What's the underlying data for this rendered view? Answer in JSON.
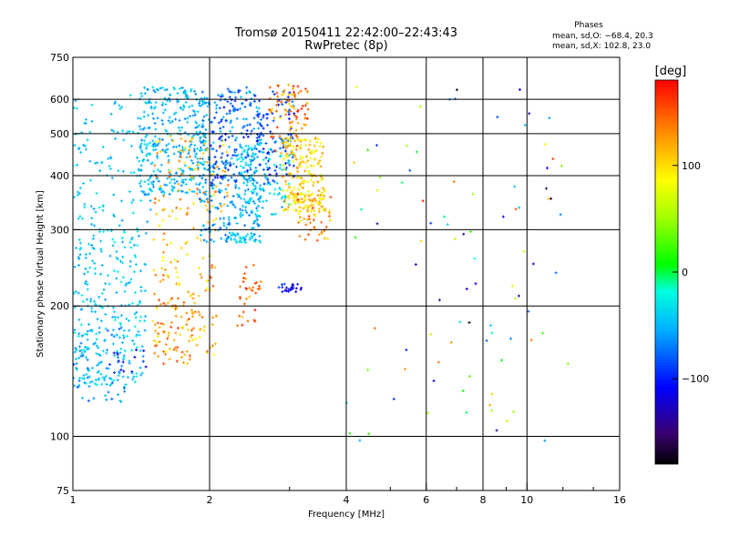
{
  "chart_data": {
    "type": "scatter",
    "title": "Tromsø 20150411 22:42:00–22:43:43",
    "subtitle": "RwPretec (8p)",
    "xlabel": "Frequency [MHz]",
    "ylabel": "Stationary phase Virtual Height [km]",
    "x_scale": "log",
    "y_scale": "log",
    "xlim": [
      1,
      16
    ],
    "ylim": [
      75,
      750
    ],
    "x_ticks": [
      1,
      2,
      4,
      6,
      8,
      10,
      16
    ],
    "x_tick_labels": [
      "1",
      "2",
      "4",
      "6",
      "8",
      "10",
      "16"
    ],
    "y_ticks": [
      75,
      100,
      200,
      300,
      400,
      500,
      600,
      750
    ],
    "y_tick_labels": [
      "75",
      "100",
      "200",
      "300",
      "400",
      "500",
      "600",
      "750"
    ],
    "x_gridlines": [
      2,
      4,
      6,
      8,
      10
    ],
    "y_gridlines": [
      100,
      200,
      300,
      400,
      500,
      600
    ],
    "stats": {
      "heading": "Phases",
      "line_o": "mean, sd,O: −68.4, 20.3",
      "line_x": "mean, sd,X: 102.8, 23.0"
    },
    "colorbar": {
      "label": "[deg]",
      "range": [
        -180,
        180
      ],
      "ticks": [
        100,
        0,
        -100
      ],
      "tick_labels": [
        "100",
        "0",
        "−100"
      ],
      "colormap": "rainbow (black-purple-blue-cyan-green-yellow-orange-red)"
    },
    "clusters": [
      {
        "f": [
          1.0,
          1.45
        ],
        "h": [
          130,
          300
        ],
        "p": [
          -60,
          -20
        ],
        "n": 260
      },
      {
        "f": [
          1.0,
          1.3
        ],
        "h": [
          120,
          180
        ],
        "p": [
          -80,
          -40
        ],
        "n": 70
      },
      {
        "f": [
          1.0,
          1.5
        ],
        "h": [
          300,
          620
        ],
        "p": [
          -60,
          -30
        ],
        "n": 120
      },
      {
        "f": [
          1.4,
          2.0
        ],
        "h": [
          360,
          640
        ],
        "p": [
          -70,
          -30
        ],
        "n": 330
      },
      {
        "f": [
          1.5,
          2.1
        ],
        "h": [
          150,
          330
        ],
        "p": [
          80,
          150
        ],
        "n": 130
      },
      {
        "f": [
          1.5,
          2.2
        ],
        "h": [
          330,
          500
        ],
        "p": [
          90,
          150
        ],
        "n": 90
      },
      {
        "f": [
          1.9,
          2.6
        ],
        "h": [
          280,
          640
        ],
        "p": [
          -80,
          -40
        ],
        "n": 270
      },
      {
        "f": [
          2.0,
          3.1
        ],
        "h": [
          380,
          630
        ],
        "p": [
          -110,
          -70
        ],
        "n": 180
      },
      {
        "f": [
          2.3,
          3.0
        ],
        "h": [
          320,
          480
        ],
        "p": [
          -60,
          -20
        ],
        "n": 140
      },
      {
        "f": [
          2.7,
          3.3
        ],
        "h": [
          450,
          650
        ],
        "p": [
          100,
          170
        ],
        "n": 90
      },
      {
        "f": [
          2.9,
          3.6
        ],
        "h": [
          330,
          490
        ],
        "p": [
          70,
          130
        ],
        "n": 200
      },
      {
        "f": [
          3.1,
          3.7
        ],
        "h": [
          280,
          370
        ],
        "p": [
          80,
          160
        ],
        "n": 60
      },
      {
        "f": [
          2.3,
          2.6
        ],
        "h": [
          180,
          250
        ],
        "p": [
          110,
          170
        ],
        "n": 35
      },
      {
        "f": [
          1.5,
          1.85
        ],
        "h": [
          145,
          210
        ],
        "p": [
          100,
          160
        ],
        "n": 45
      },
      {
        "f": [
          1.2,
          1.45
        ],
        "h": [
          140,
          160
        ],
        "p": [
          -120,
          -90
        ],
        "n": 15
      },
      {
        "f": [
          2.8,
          3.2
        ],
        "h": [
          215,
          225
        ],
        "p": [
          -130,
          -90
        ],
        "n": 25
      },
      {
        "f": [
          2.2,
          2.6
        ],
        "h": [
          280,
          295
        ],
        "p": [
          -50,
          -20
        ],
        "n": 30
      },
      {
        "f": [
          4.0,
          12.5
        ],
        "h": [
          95,
          650
        ],
        "p": [
          -170,
          170
        ],
        "n": 90
      }
    ]
  }
}
